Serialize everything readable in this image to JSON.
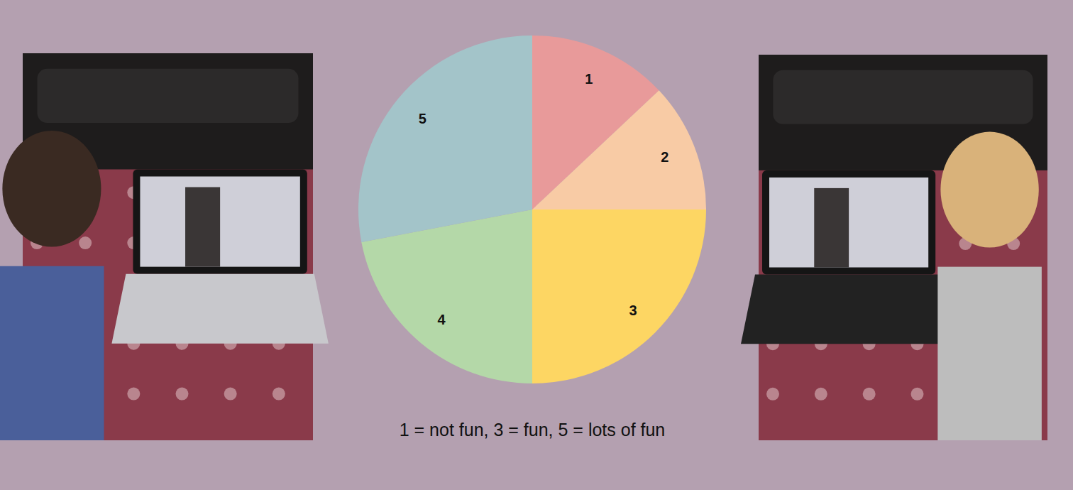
{
  "chart_data": {
    "type": "pie",
    "categories": [
      "1",
      "2",
      "3",
      "4",
      "5"
    ],
    "values": [
      13,
      12,
      25,
      22,
      28
    ],
    "colors": [
      "#e89a9a",
      "#f8cba5",
      "#fdd663",
      "#b4d8a8",
      "#a3c4c9"
    ],
    "annotations": [
      "1 = not fun, 3 = fun, 5 = lots of fun"
    ]
  }
}
